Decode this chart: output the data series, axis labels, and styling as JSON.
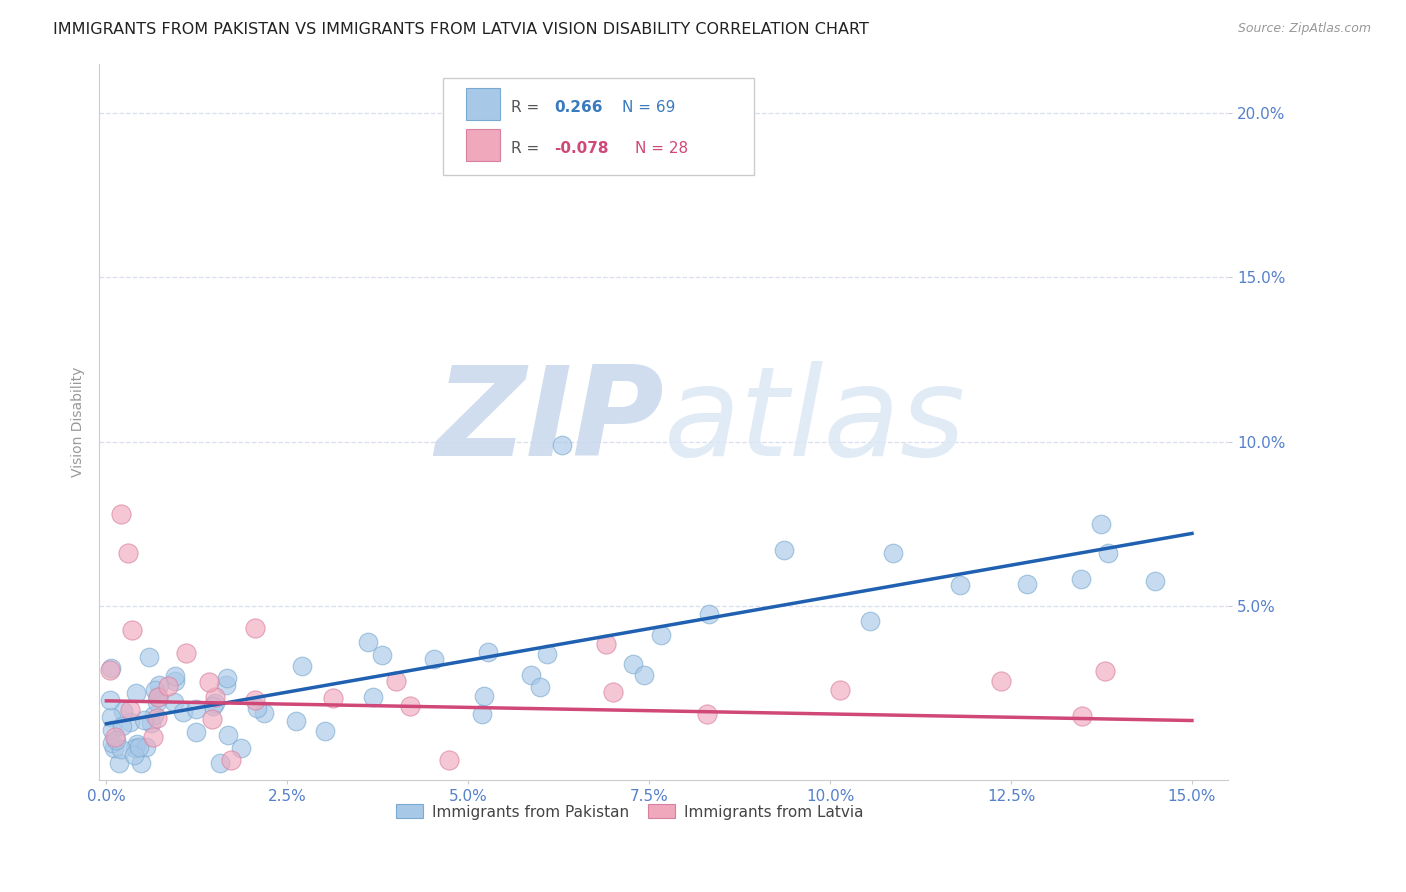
{
  "title": "IMMIGRANTS FROM PAKISTAN VS IMMIGRANTS FROM LATVIA VISION DISABILITY CORRELATION CHART",
  "source_text": "Source: ZipAtlas.com",
  "ylabel": "Vision Disability",
  "xlim": [
    -0.001,
    0.155
  ],
  "ylim": [
    -0.003,
    0.215
  ],
  "xtick_positions": [
    0.0,
    0.025,
    0.05,
    0.075,
    0.1,
    0.125,
    0.15
  ],
  "xtick_labels": [
    "0.0%",
    "2.5%",
    "5.0%",
    "7.5%",
    "10.0%",
    "12.5%",
    "15.0%"
  ],
  "ytick_positions": [
    0.05,
    0.1,
    0.15,
    0.2
  ],
  "ytick_labels": [
    "5.0%",
    "10.0%",
    "15.0%",
    "20.0%"
  ],
  "pakistan_color": "#a8c8e8",
  "pakistan_edge_color": "#7aaad0",
  "latvia_color": "#f0a8bc",
  "latvia_edge_color": "#d880a0",
  "pakistan_line_color": "#2060b0",
  "latvia_line_color": "#d04878",
  "grid_color": "#d8dff0",
  "background_color": "#ffffff",
  "title_fontsize": 11.5,
  "tick_label_color": "#5580cc",
  "ylabel_color": "#999999",
  "watermark_color": "#dde8f5",
  "legend_box_color": "#3a7abf",
  "legend_R_color_pakistan": "#3a7abf",
  "legend_R_color_latvia": "#d04878",
  "source_color": "#999999"
}
